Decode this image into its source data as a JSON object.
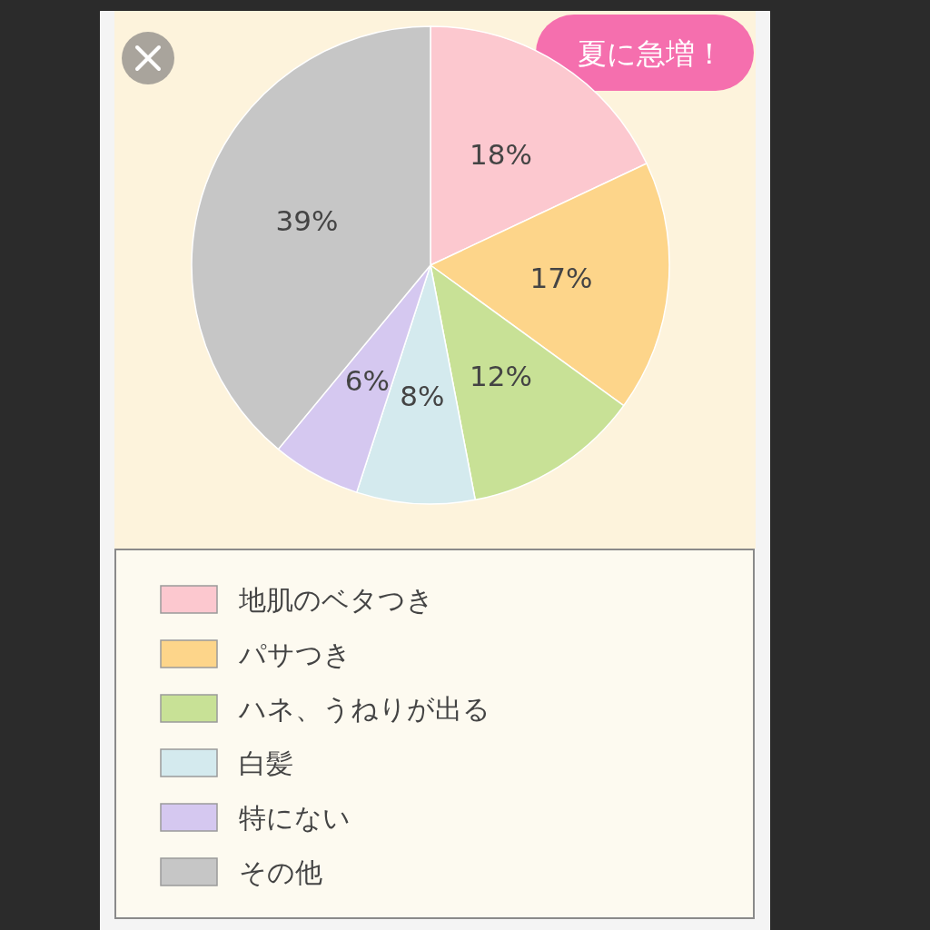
{
  "chart_data": {
    "type": "pie",
    "categories": [
      "地肌のベタつき",
      "パサつき",
      "ハネ、うねりが出る",
      "白髪",
      "特にない",
      "その他"
    ],
    "values": [
      18,
      17,
      12,
      8,
      6,
      39
    ],
    "colors": [
      "#fcc8cf",
      "#fdd58a",
      "#c8e196",
      "#d4eaee",
      "#d5c8f0",
      "#c6c6c6"
    ],
    "value_labels": [
      "18%",
      "17%",
      "12%",
      "8%",
      "6%",
      "39%"
    ],
    "legend": "bottom",
    "annotations": [
      "夏に急増！"
    ]
  }
}
